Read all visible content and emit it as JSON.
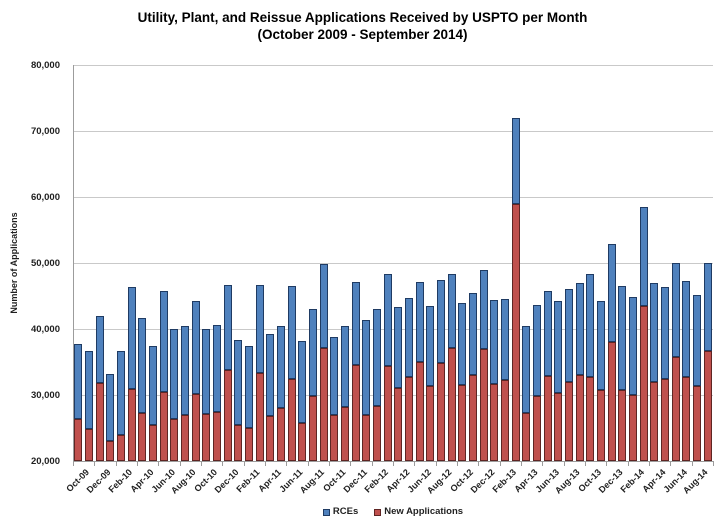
{
  "title": {
    "line1": "Utility, Plant, and Reissue Applications Received by USPTO per Month",
    "line2": "(October 2009  - September 2014)"
  },
  "y_axis": {
    "title": "Number of Applications",
    "min": 20000,
    "max": 80000,
    "step": 10000,
    "tick_labels": [
      "20,000",
      "30,000",
      "40,000",
      "50,000",
      "60,000",
      "70,000",
      "80,000"
    ]
  },
  "x_axis": {
    "labels_shown_every_n_months": 2,
    "labels": [
      "Oct-09",
      "Dec-09",
      "Feb-10",
      "Apr-10",
      "Jun-10",
      "Aug-10",
      "Oct-10",
      "Dec-10",
      "Feb-11",
      "Apr-11",
      "Jun-11",
      "Aug-11",
      "Oct-11",
      "Dec-11",
      "Feb-12",
      "Apr-12",
      "Jun-12",
      "Aug-12",
      "Oct-12",
      "Dec-12",
      "Feb-13",
      "Apr-13",
      "Jun-13",
      "Aug-13",
      "Oct-13",
      "Dec-13",
      "Feb-14",
      "Apr-14",
      "Jun-14",
      "Aug-14"
    ]
  },
  "legend": [
    {
      "label": "RCEs",
      "color": "#4F81BD"
    },
    {
      "label": "New Applications",
      "color": "#C0504D"
    }
  ],
  "colors": {
    "rce_blue": "#4F81BD",
    "new_red": "#C0504D",
    "gridline": "#C9C9C9",
    "axis": "#9C9C9C",
    "text": "#1F1F1F"
  },
  "chart_data": {
    "type": "bar",
    "stacked": true,
    "title": "Utility, Plant, and Reissue Applications Received by USPTO per Month (October 2009 - September 2014)",
    "xlabel": "",
    "ylabel": "Number of Applications",
    "ylim": [
      20000,
      80000
    ],
    "grid": true,
    "legend_position": "bottom",
    "categories": [
      "Oct-09",
      "Nov-09",
      "Dec-09",
      "Jan-10",
      "Feb-10",
      "Mar-10",
      "Apr-10",
      "May-10",
      "Jun-10",
      "Jul-10",
      "Aug-10",
      "Sep-10",
      "Oct-10",
      "Nov-10",
      "Dec-10",
      "Jan-11",
      "Feb-11",
      "Mar-11",
      "Apr-11",
      "May-11",
      "Jun-11",
      "Jul-11",
      "Aug-11",
      "Sep-11",
      "Oct-11",
      "Nov-11",
      "Dec-11",
      "Jan-12",
      "Feb-12",
      "Mar-12",
      "Apr-12",
      "May-12",
      "Jun-12",
      "Jul-12",
      "Aug-12",
      "Sep-12",
      "Oct-12",
      "Nov-12",
      "Dec-12",
      "Jan-13",
      "Feb-13",
      "Mar-13",
      "Apr-13",
      "May-13",
      "Jun-13",
      "Jul-13",
      "Aug-13",
      "Sep-13",
      "Oct-13",
      "Nov-13",
      "Dec-13",
      "Jan-14",
      "Feb-14",
      "Mar-14",
      "Apr-14",
      "May-14",
      "Jun-14",
      "Jul-14",
      "Aug-14",
      "Sep-14"
    ],
    "series": [
      {
        "name": "New Applications",
        "color": "#C0504D",
        "values": [
          26400,
          24800,
          31800,
          23000,
          24000,
          30900,
          27300,
          25400,
          30500,
          26300,
          26900,
          30100,
          27100,
          27500,
          33800,
          25400,
          25000,
          33400,
          26800,
          28000,
          32500,
          25800,
          29800,
          37100,
          27000,
          28200,
          34500,
          27000,
          28400,
          34400,
          31100,
          32800,
          35000,
          31300,
          34800,
          37100,
          31500,
          33000,
          36900,
          31700,
          32200,
          59000,
          27300,
          29800,
          32900,
          30300,
          32000,
          33000,
          32800,
          30700,
          38000,
          30800,
          30000,
          43500,
          31900,
          32500,
          35700,
          32700,
          31400,
          36700
        ]
      },
      {
        "name": "RCEs",
        "color": "#4F81BD",
        "values": [
          11400,
          11800,
          10200,
          10200,
          12600,
          15500,
          14300,
          12100,
          15200,
          13700,
          13600,
          14100,
          12900,
          13100,
          12800,
          12900,
          12500,
          13200,
          12500,
          12500,
          14000,
          12400,
          13300,
          12700,
          11800,
          12300,
          12600,
          14400,
          14600,
          13900,
          12300,
          11900,
          12100,
          12200,
          12600,
          11200,
          12400,
          12500,
          12100,
          12700,
          12300,
          12900,
          13200,
          13800,
          12900,
          13900,
          14100,
          14000,
          15500,
          13600,
          14900,
          15700,
          14900,
          15000,
          15000,
          13900,
          14300,
          14500,
          13800,
          13300
        ]
      }
    ],
    "stack_totals": [
      37800,
      36600,
      42000,
      33200,
      36600,
      46400,
      41600,
      37500,
      45700,
      40000,
      40500,
      44200,
      40000,
      40600,
      46600,
      38300,
      37500,
      46600,
      39300,
      40500,
      46500,
      38200,
      43100,
      49800,
      38800,
      40500,
      47100,
      41400,
      43000,
      48300,
      43400,
      44700,
      47100,
      43500,
      47400,
      48300,
      43900,
      45500,
      49000,
      44400,
      44500,
      71900,
      40500,
      43600,
      45800,
      44200,
      46100,
      47000,
      48300,
      44300,
      52900,
      46500,
      44900,
      58500,
      46900,
      46400,
      50000,
      47200,
      45200,
      50000
    ]
  }
}
